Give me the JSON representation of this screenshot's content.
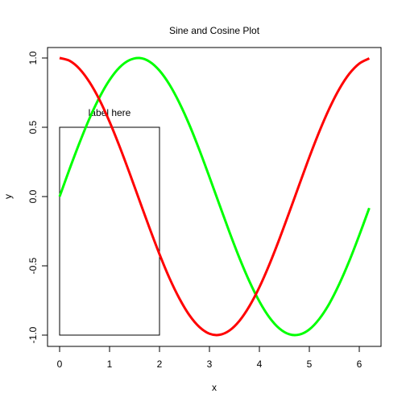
{
  "chart_data": {
    "type": "line",
    "title": "Sine and Cosine Plot",
    "xlabel": "x",
    "ylabel": "y",
    "xlim": [
      0,
      6.2
    ],
    "ylim": [
      -1,
      1
    ],
    "x_ticks": [
      "0",
      "1",
      "2",
      "3",
      "4",
      "5",
      "6"
    ],
    "y_ticks": [
      "-1.0",
      "-0.5",
      "0.0",
      "0.5",
      "1.0"
    ],
    "grid": false,
    "series": [
      {
        "color": "#00ff00",
        "x": [
          0,
          0.2,
          0.4,
          0.6,
          0.8,
          1.0,
          1.2,
          1.4,
          1.6,
          1.8,
          2.0,
          2.2,
          2.4,
          2.6,
          2.8,
          3.0,
          3.2,
          3.4,
          3.6,
          3.8,
          4.0,
          4.2,
          4.4,
          4.6,
          4.8,
          5.0,
          5.2,
          5.4,
          5.6,
          5.8,
          6.0,
          6.2
        ],
        "y": [
          0.0,
          0.199,
          0.389,
          0.565,
          0.717,
          0.841,
          0.932,
          0.985,
          1.0,
          0.974,
          0.909,
          0.808,
          0.675,
          0.516,
          0.335,
          0.141,
          -0.058,
          -0.256,
          -0.443,
          -0.612,
          -0.757,
          -0.872,
          -0.952,
          -0.994,
          -0.996,
          -0.959,
          -0.883,
          -0.773,
          -0.631,
          -0.465,
          -0.279,
          -0.083
        ]
      },
      {
        "color": "#ff0000",
        "x": [
          0,
          0.2,
          0.4,
          0.6,
          0.8,
          1.0,
          1.2,
          1.4,
          1.6,
          1.8,
          2.0,
          2.2,
          2.4,
          2.6,
          2.8,
          3.0,
          3.2,
          3.4,
          3.6,
          3.8,
          4.0,
          4.2,
          4.4,
          4.6,
          4.8,
          5.0,
          5.2,
          5.4,
          5.6,
          5.8,
          6.0,
          6.2
        ],
        "y": [
          1.0,
          0.98,
          0.921,
          0.825,
          0.697,
          0.54,
          0.362,
          0.17,
          -0.029,
          -0.227,
          -0.416,
          -0.589,
          -0.737,
          -0.857,
          -0.942,
          -0.99,
          -0.998,
          -0.967,
          -0.897,
          -0.791,
          -0.654,
          -0.49,
          -0.307,
          -0.112,
          0.087,
          0.284,
          0.469,
          0.635,
          0.776,
          0.886,
          0.96,
          0.997
        ]
      }
    ],
    "annotations": [
      {
        "type": "rect",
        "x0": 0,
        "y0": -1,
        "x1": 2,
        "y1": 0.5,
        "color": "#000000"
      },
      {
        "type": "text",
        "text": "label here",
        "x": 1,
        "y": 0.58
      }
    ]
  }
}
